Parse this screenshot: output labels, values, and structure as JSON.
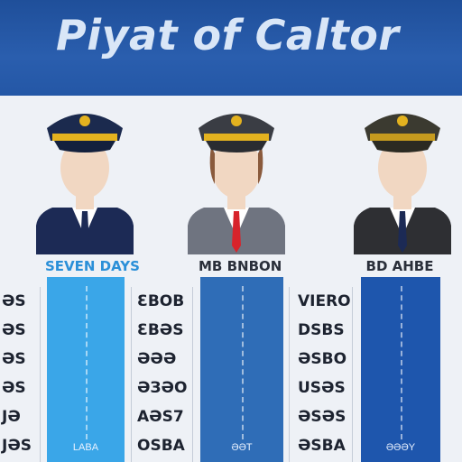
{
  "header": {
    "title": "Piyat of Caltor"
  },
  "pilots": [
    {
      "label": "SEVEN DAYS",
      "label_color": "#2a8fd8",
      "bar_color": "#3aa6e8",
      "bar_foot": "LABA",
      "shirt_tie": "#1c2a55",
      "values": [
        "ƏS",
        "ƏS",
        "ƏS",
        "ƏS",
        "ЈƏ",
        "ЈƏЅ"
      ]
    },
    {
      "label": "MB BNBON",
      "label_color": "#2a2f3a",
      "bar_color": "#2f6db7",
      "bar_foot": "ƏƏT",
      "shirt_tie": "#d7232b",
      "values": [
        "ƐBOB",
        "ƐBƏS",
        "ƏƏƏ",
        "ƏЗƏO",
        "AƏS7",
        "OSBA"
      ]
    },
    {
      "label": "BD AHBE",
      "label_color": "#2a2f3a",
      "bar_color": "#1e56ad",
      "bar_foot": "ƏƏƏY",
      "shirt_tie": "#1c2a55",
      "values": [
        "VIERO",
        "DSBS",
        "ƏSBO",
        "USƏS",
        "ƏSƏS",
        "ƏSBA"
      ]
    }
  ],
  "colors": {
    "header": "#2457a6",
    "hat_dark": "#1b2a4e",
    "hat_band": "#e3b21f"
  }
}
